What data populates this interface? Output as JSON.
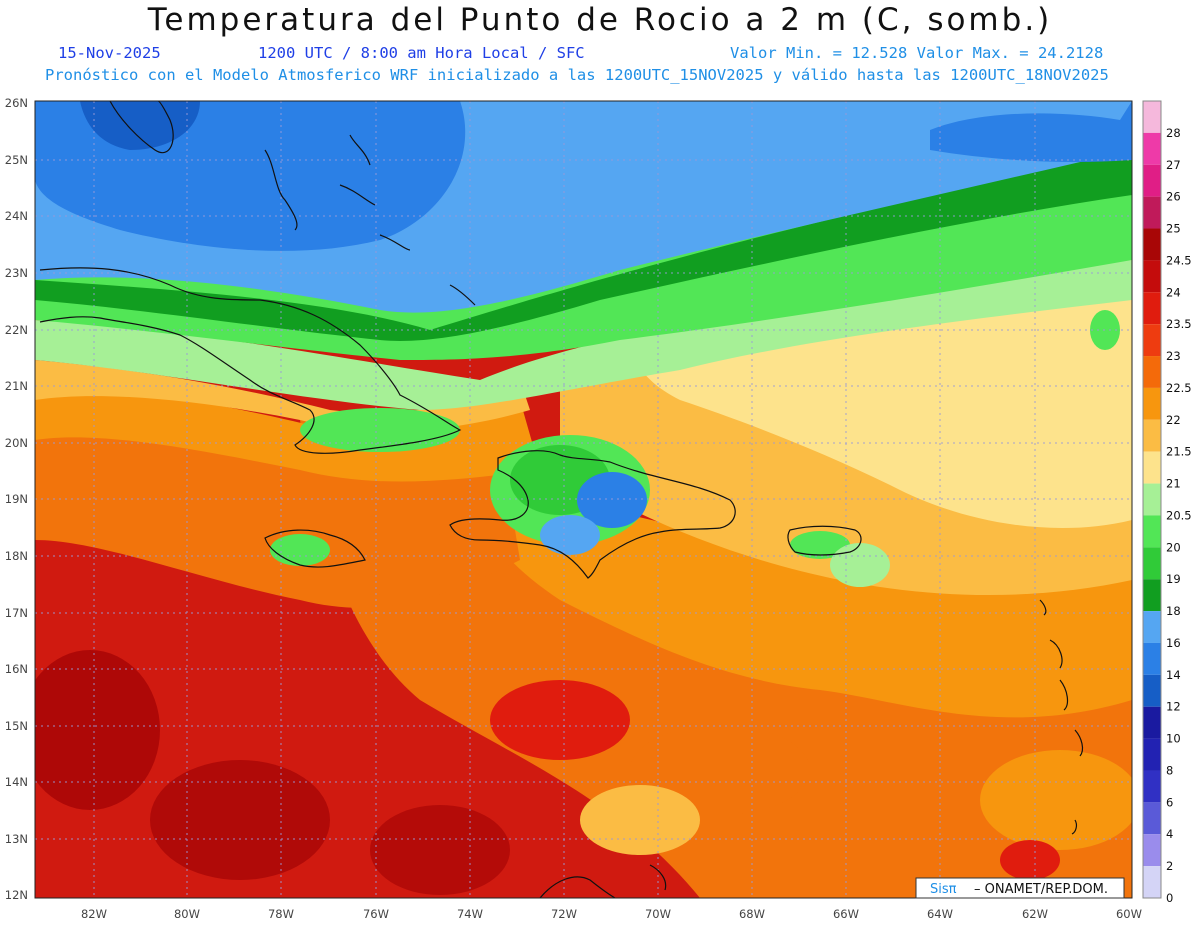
{
  "header": {
    "title": "Temperatura del Punto de Rocio a 2 m (C, somb.)",
    "date": "15-Nov-2025",
    "time": "1200 UTC / 8:00 am Hora Local / SFC",
    "minmax": "Valor Min. = 12.528  Valor Max. = 24.2128",
    "model_info": "Pronóstico con el Modelo Atmosferico WRF inicializado a las 1200UTC_15NOV2025 y válido hasta las  1200UTC_18NOV2025"
  },
  "map": {
    "lat_labels": [
      "26N",
      "25N",
      "24N",
      "23N",
      "22N",
      "21N",
      "20N",
      "19N",
      "18N",
      "17N",
      "16N",
      "15N",
      "14N",
      "13N",
      "12N"
    ],
    "lon_labels": [
      "82W",
      "80W",
      "78W",
      "76W",
      "74W",
      "72W",
      "70W",
      "68W",
      "66W",
      "64W",
      "62W",
      "60W"
    ],
    "credit": {
      "brand": "Sisπ",
      "text": "– ONAMET/REP.DOM."
    }
  },
  "colorbar": {
    "levels": [
      "28",
      "27",
      "26",
      "25",
      "24.5",
      "24",
      "23.5",
      "23",
      "22.5",
      "22",
      "21.5",
      "21",
      "20.5",
      "20",
      "19",
      "18",
      "16",
      "14",
      "12",
      "10",
      "8",
      "6",
      "4",
      "2",
      "0"
    ],
    "colors": [
      "#f5b8dc",
      "#ee3aa8",
      "#e01e86",
      "#c01a5a",
      "#a80606",
      "#c40c0c",
      "#e01c0e",
      "#ee3c10",
      "#f46a0a",
      "#f7960e",
      "#fbbc44",
      "#fde38c",
      "#a6f096",
      "#52e656",
      "#30cb38",
      "#119e20",
      "#55a6f2",
      "#2b80e6",
      "#165ec6",
      "#1a1aa0",
      "#2222b2",
      "#3030c4",
      "#5a5ad8",
      "#9a8cec",
      "#d4d4f6"
    ]
  }
}
